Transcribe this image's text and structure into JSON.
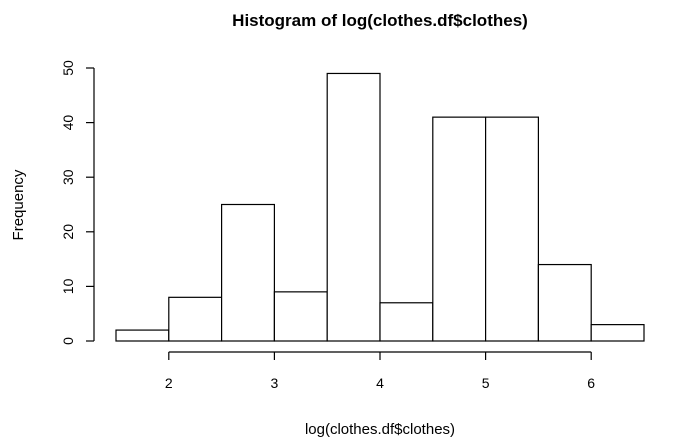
{
  "chart_data": {
    "type": "bar",
    "title": "Histogram of log(clothes.df$clothes)",
    "xlabel": "log(clothes.df$clothes)",
    "ylabel": "Frequency",
    "bins": [
      {
        "x0": 1.5,
        "x1": 2.0,
        "count": 2
      },
      {
        "x0": 2.0,
        "x1": 2.5,
        "count": 8
      },
      {
        "x0": 2.5,
        "x1": 3.0,
        "count": 25
      },
      {
        "x0": 3.0,
        "x1": 3.5,
        "count": 9
      },
      {
        "x0": 3.5,
        "x1": 4.0,
        "count": 49
      },
      {
        "x0": 4.0,
        "x1": 4.5,
        "count": 7
      },
      {
        "x0": 4.5,
        "x1": 5.0,
        "count": 41
      },
      {
        "x0": 5.0,
        "x1": 5.5,
        "count": 41
      },
      {
        "x0": 5.5,
        "x1": 6.0,
        "count": 14
      },
      {
        "x0": 6.0,
        "x1": 6.5,
        "count": 3
      }
    ],
    "xticks": [
      2,
      3,
      4,
      5,
      6
    ],
    "yticks": [
      0,
      10,
      20,
      30,
      40,
      50
    ],
    "xlim": [
      1.5,
      6.5
    ],
    "ylim": [
      0,
      50
    ],
    "grid": false,
    "legend": "none"
  }
}
